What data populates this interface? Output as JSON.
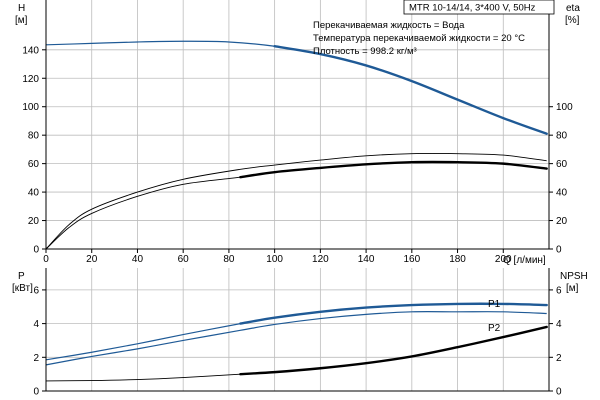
{
  "header": {
    "model": "MTR 10-14/14, 3*400 V, 50Hz"
  },
  "info_lines": [
    "Перекачиваемая жидкость = Вода",
    "Температура перекачиваемой жидкости = 20 °C",
    "Плотность = 998.2 кг/м³"
  ],
  "colors": {
    "head_curve": "#1f5a96",
    "power_curve": "#1f5a96",
    "black": "#000000",
    "grid": "#bdbdbd"
  },
  "chart_data": [
    {
      "type": "line",
      "title": "",
      "x_axis": {
        "label": "Q [л/мин]",
        "ticks": [
          0,
          20,
          40,
          60,
          80,
          100,
          120,
          140,
          160,
          180,
          200
        ],
        "range": [
          0,
          220
        ]
      },
      "y_left": {
        "label": "H",
        "unit": "[м]",
        "ticks": [
          0,
          20,
          40,
          60,
          80,
          100,
          120,
          140
        ],
        "range": [
          0,
          175
        ]
      },
      "y_right": {
        "label": "eta",
        "unit": "[%]",
        "ticks": [
          0,
          20,
          40,
          60,
          80,
          100
        ],
        "range": [
          0,
          175
        ]
      },
      "grid": true,
      "series": [
        {
          "id": "head",
          "axis": "left",
          "style": "blue",
          "x": [
            0,
            20,
            40,
            60,
            80,
            100,
            120,
            140,
            160,
            180,
            200,
            219
          ],
          "y": [
            143.5,
            144.5,
            145.5,
            146,
            145.5,
            142.5,
            137,
            129,
            118,
            105,
            92,
            81
          ],
          "thick_from": 85
        },
        {
          "id": "eta_thin",
          "axis": "right",
          "style": "black-thin",
          "x": [
            0,
            10,
            20,
            40,
            60,
            85,
            100,
            120,
            140,
            160,
            180,
            200,
            219
          ],
          "y": [
            0,
            17,
            28,
            40,
            49,
            56,
            59,
            62.5,
            65.5,
            67,
            67,
            66,
            62
          ]
        },
        {
          "id": "eta_thick",
          "axis": "right",
          "style": "black-thin-then-thick",
          "x": [
            0,
            10,
            20,
            40,
            60,
            85,
            100,
            120,
            140,
            160,
            180,
            200,
            219
          ],
          "y": [
            0,
            15,
            25,
            37,
            45.5,
            50.5,
            54,
            57,
            59.5,
            61,
            61,
            60,
            56.5
          ],
          "thick_from": 85
        }
      ]
    },
    {
      "type": "line",
      "title": "",
      "x_axis": {
        "label": "",
        "range": [
          0,
          220
        ]
      },
      "y_left": {
        "label": "P",
        "unit": "[кВт]",
        "ticks": [
          0,
          2,
          4,
          6
        ],
        "range": [
          0,
          7.3
        ]
      },
      "y_right": {
        "label": "NPSH",
        "unit": "[м]",
        "ticks": [
          0,
          2,
          4,
          6
        ],
        "range": [
          0,
          7.3
        ]
      },
      "grid": true,
      "series": [
        {
          "id": "P1",
          "name": "P1",
          "axis": "left",
          "style": "blue",
          "x": [
            0,
            20,
            40,
            60,
            85,
            100,
            120,
            140,
            160,
            180,
            200,
            219
          ],
          "y": [
            1.85,
            2.3,
            2.8,
            3.35,
            4.0,
            4.35,
            4.7,
            4.95,
            5.1,
            5.17,
            5.17,
            5.1
          ],
          "thick_from": 85
        },
        {
          "id": "P2",
          "name": "P2",
          "axis": "left",
          "style": "blue-thin",
          "x": [
            0,
            20,
            40,
            60,
            85,
            100,
            120,
            140,
            160,
            180,
            200,
            219
          ],
          "y": [
            1.55,
            2.05,
            2.5,
            3.0,
            3.6,
            3.95,
            4.3,
            4.55,
            4.7,
            4.7,
            4.7,
            4.6
          ]
        },
        {
          "id": "NPSH",
          "axis": "right",
          "style": "black-thin-then-thick",
          "x": [
            0,
            20,
            40,
            60,
            85,
            100,
            120,
            140,
            160,
            180,
            200,
            219
          ],
          "y": [
            0.6,
            0.62,
            0.68,
            0.8,
            1.0,
            1.12,
            1.35,
            1.65,
            2.05,
            2.6,
            3.2,
            3.8
          ],
          "thick_from": 85
        }
      ]
    }
  ]
}
